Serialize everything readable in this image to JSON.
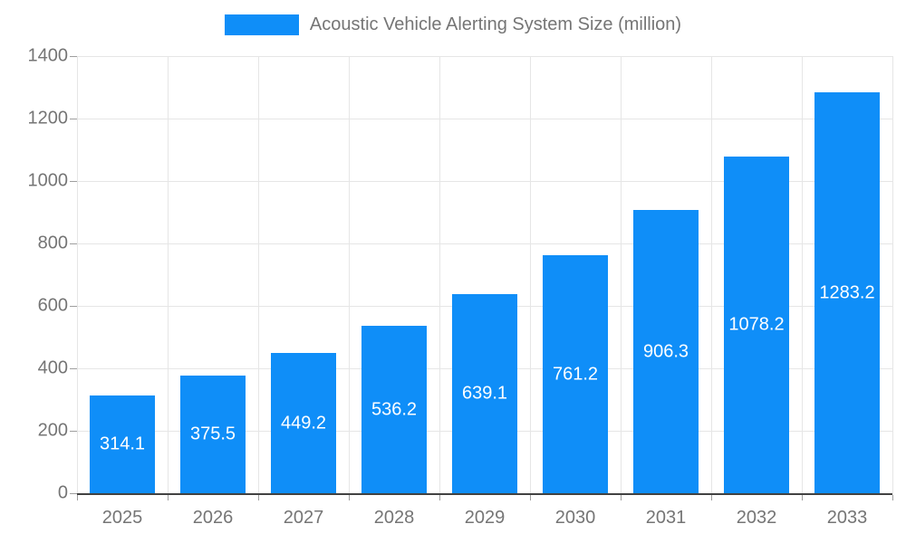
{
  "chart_data": {
    "type": "bar",
    "title": "Acoustic Vehicle Alerting System Size (million)",
    "categories": [
      "2025",
      "2026",
      "2027",
      "2028",
      "2029",
      "2030",
      "2031",
      "2032",
      "2033"
    ],
    "values": [
      314.1,
      375.5,
      449.2,
      536.2,
      639.1,
      761.2,
      906.3,
      1078.2,
      1283.2
    ],
    "xlabel": "",
    "ylabel": "",
    "ylim": [
      0,
      1400
    ],
    "ytick_step": 200,
    "grid": true,
    "legend_position": "top",
    "bar_color": "#0f8ef8",
    "value_label_color": "#ffffff",
    "axis_label_color": "#757575",
    "gridline_color": "#e6e6e6",
    "baseline_color": "#424242"
  }
}
